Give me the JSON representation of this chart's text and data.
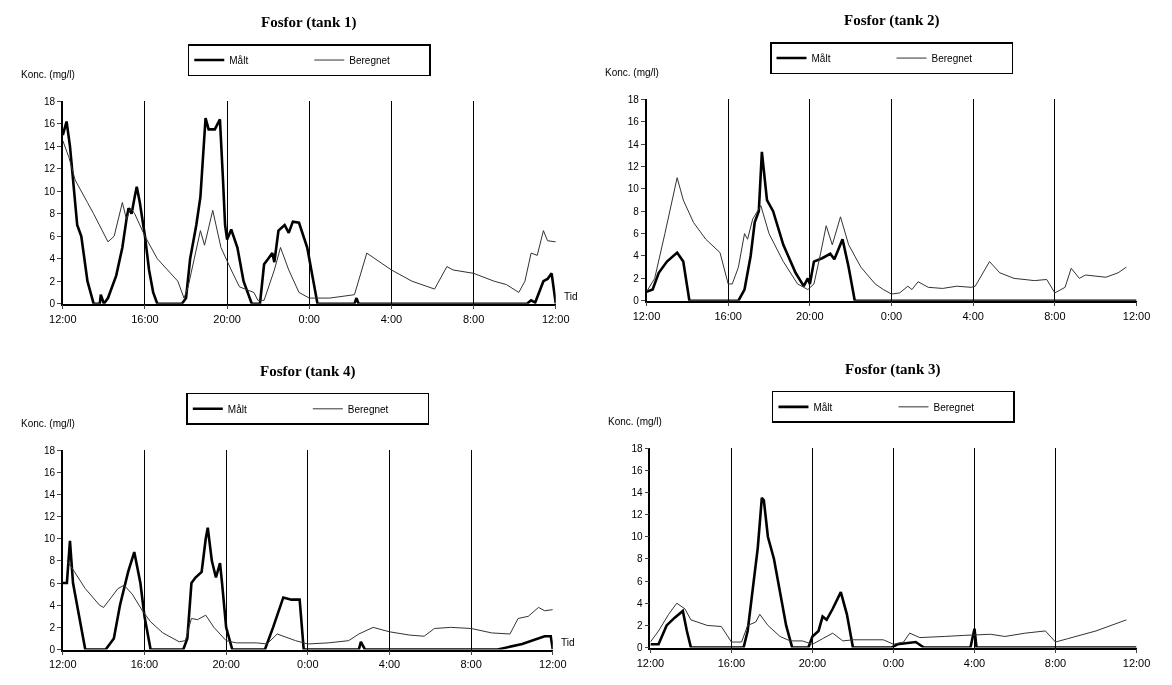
{
  "chart_data": [
    {
      "type": "line",
      "title": "Fosfor (tank 1)",
      "ylabel": "Konc. (mg/l)",
      "xlabel": "Tid",
      "xlim": [
        "2000-01-01T12:00",
        "2000-01-02T12:00"
      ],
      "ylim": [
        0,
        18
      ],
      "xticks": [
        {
          "value": "2000-01-01T12:00",
          "label": "12:00"
        },
        {
          "value": "2000-01-01T16:00",
          "label": "16:00"
        },
        {
          "value": "2000-01-01T20:00",
          "label": "20:00"
        },
        {
          "value": "2000-01-02T00:00",
          "label": "0:00"
        },
        {
          "value": "2000-01-02T04:00",
          "label": "4:00"
        },
        {
          "value": "2000-01-02T08:00",
          "label": "8:00"
        },
        {
          "value": "2000-01-02T12:00",
          "label": "12:00"
        }
      ],
      "yticks": [
        0,
        2,
        4,
        6,
        8,
        10,
        12,
        14,
        16,
        18
      ],
      "grid": "x",
      "legend": "top",
      "line_style": "solid",
      "marker": "none",
      "series": [
        {
          "name": "Målt",
          "color": "#000000",
          "x": [
            "2000-01-01T12:00",
            "2000-01-01T12:11",
            "2000-01-01T12:21",
            "2000-01-01T12:42",
            "2000-01-01T12:54",
            "2000-01-01T13:12",
            "2000-01-01T13:30",
            "2000-01-01T13:48",
            "2000-01-01T13:51",
            "2000-01-01T14:00",
            "2000-01-01T14:12",
            "2000-01-01T14:36",
            "2000-01-01T14:54",
            "2000-01-01T15:06",
            "2000-01-01T15:12",
            "2000-01-01T15:21",
            "2000-01-01T15:30",
            "2000-01-01T15:36",
            "2000-01-01T15:45",
            "2000-01-01T16:00",
            "2000-01-01T16:12",
            "2000-01-01T16:24",
            "2000-01-01T16:36",
            "2000-01-01T17:48",
            "2000-01-01T18:00",
            "2000-01-01T18:12",
            "2000-01-01T18:30",
            "2000-01-01T18:42",
            "2000-01-01T18:57",
            "2000-01-01T19:06",
            "2000-01-01T19:24",
            "2000-01-01T19:39",
            "2000-01-01T19:48",
            "2000-01-01T19:54",
            "2000-01-01T20:00",
            "2000-01-01T20:12",
            "2000-01-01T20:30",
            "2000-01-01T20:48",
            "2000-01-01T21:12",
            "2000-01-01T21:36",
            "2000-01-01T21:48",
            "2000-01-01T22:00",
            "2000-01-01T22:12",
            "2000-01-01T22:18",
            "2000-01-01T22:30",
            "2000-01-01T22:48",
            "2000-01-01T23:00",
            "2000-01-01T23:12",
            "2000-01-01T23:30",
            "2000-01-01T23:54",
            "2000-01-02T00:12",
            "2000-01-02T00:24",
            "2000-01-02T02:12",
            "2000-01-02T02:18",
            "2000-01-02T02:24",
            "2000-01-02T10:36",
            "2000-01-02T10:48",
            "2000-01-02T11:00",
            "2000-01-02T11:24",
            "2000-01-02T11:36",
            "2000-01-02T11:48",
            "2000-01-02T12:00"
          ],
          "values": [
            15,
            16.2,
            14,
            7,
            6,
            2,
            0,
            0,
            0.8,
            0,
            0.5,
            2.5,
            5,
            7.5,
            8.5,
            8,
            9.5,
            10.4,
            9,
            6,
            3,
            1,
            0,
            0,
            0.5,
            4,
            7,
            9.5,
            16.5,
            15.5,
            15.5,
            16.4,
            11,
            7,
            5.7,
            6.6,
            5,
            2,
            0,
            0,
            3.5,
            4,
            4.5,
            3.7,
            6.5,
            7,
            6.3,
            7.3,
            7.2,
            5,
            2,
            0,
            0,
            0.5,
            0,
            0,
            0.3,
            0.1,
            2,
            2.2,
            2.7,
            0
          ]
        },
        {
          "name": "Beregnet",
          "color": "#333333",
          "x": [
            "2000-01-01T12:00",
            "2000-01-01T12:18",
            "2000-01-01T12:36",
            "2000-01-01T13:12",
            "2000-01-01T13:30",
            "2000-01-01T14:12",
            "2000-01-01T14:30",
            "2000-01-01T14:54",
            "2000-01-01T15:06",
            "2000-01-01T15:18",
            "2000-01-01T15:30",
            "2000-01-01T16:00",
            "2000-01-01T16:36",
            "2000-01-01T17:36",
            "2000-01-01T17:54",
            "2000-01-01T18:06",
            "2000-01-01T18:24",
            "2000-01-01T18:42",
            "2000-01-01T18:54",
            "2000-01-01T19:18",
            "2000-01-01T19:42",
            "2000-01-01T20:12",
            "2000-01-01T20:36",
            "2000-01-01T21:18",
            "2000-01-01T21:30",
            "2000-01-01T21:48",
            "2000-01-01T22:18",
            "2000-01-01T22:36",
            "2000-01-01T23:00",
            "2000-01-01T23:30",
            "2000-01-02T00:00",
            "2000-01-02T01:00",
            "2000-01-02T02:12",
            "2000-01-02T02:48",
            "2000-01-02T03:12",
            "2000-01-02T04:00",
            "2000-01-02T05:00",
            "2000-01-02T06:06",
            "2000-01-02T06:42",
            "2000-01-02T07:00",
            "2000-01-02T08:00",
            "2000-01-02T09:00",
            "2000-01-02T09:36",
            "2000-01-02T10:12",
            "2000-01-02T10:30",
            "2000-01-02T10:48",
            "2000-01-02T11:06",
            "2000-01-02T11:24",
            "2000-01-02T11:36",
            "2000-01-02T12:00"
          ],
          "values": [
            14.5,
            13,
            11,
            9,
            8,
            5.5,
            6,
            9,
            7.5,
            8.5,
            8,
            6,
            4,
            2,
            0.5,
            1.5,
            4,
            6.5,
            5.2,
            8.3,
            5,
            3,
            1.5,
            1,
            0.3,
            0.3,
            3,
            5,
            3,
            1,
            0.5,
            0.5,
            0.8,
            4.5,
            4,
            3,
            2,
            1.3,
            3.3,
            3,
            2.7,
            2,
            1.7,
            1,
            2,
            4.5,
            4.3,
            6.5,
            5.6,
            5.5
          ]
        }
      ]
    },
    {
      "type": "line",
      "title": "Fosfor (tank 2)",
      "ylabel": "Konc. (mg/l)",
      "xlim": [
        "2000-01-01T12:00",
        "2000-01-02T12:00"
      ],
      "ylim": [
        0,
        18
      ],
      "xticks": [
        {
          "value": "2000-01-01T12:00",
          "label": "12:00"
        },
        {
          "value": "2000-01-01T16:00",
          "label": "16:00"
        },
        {
          "value": "2000-01-01T20:00",
          "label": "20:00"
        },
        {
          "value": "2000-01-02T00:00",
          "label": "0:00"
        },
        {
          "value": "2000-01-02T04:00",
          "label": "4:00"
        },
        {
          "value": "2000-01-02T08:00",
          "label": "8:00"
        },
        {
          "value": "2000-01-02T12:00",
          "label": "12:00"
        }
      ],
      "yticks": [
        0,
        2,
        4,
        6,
        8,
        10,
        12,
        14,
        16,
        18
      ],
      "grid": "x",
      "legend": "top",
      "line_style": "solid",
      "marker": "none",
      "series": [
        {
          "name": "Målt",
          "color": "#000000",
          "x": [
            "2000-01-01T12:00",
            "2000-01-01T12:18",
            "2000-01-01T12:36",
            "2000-01-01T13:00",
            "2000-01-01T13:30",
            "2000-01-01T13:48",
            "2000-01-01T14:06",
            "2000-01-01T16:30",
            "2000-01-01T16:48",
            "2000-01-01T17:06",
            "2000-01-01T17:18",
            "2000-01-01T17:30",
            "2000-01-01T17:39",
            "2000-01-01T17:54",
            "2000-01-01T18:12",
            "2000-01-01T18:42",
            "2000-01-01T19:18",
            "2000-01-01T19:42",
            "2000-01-01T19:54",
            "2000-01-01T20:00",
            "2000-01-01T20:12",
            "2000-01-01T20:36",
            "2000-01-01T21:00",
            "2000-01-01T21:12",
            "2000-01-01T21:36",
            "2000-01-01T21:54",
            "2000-01-01T22:12",
            "2000-01-02T12:00"
          ],
          "values": [
            0.8,
            1,
            2.5,
            3.5,
            4.3,
            3.5,
            0,
            0,
            1,
            4,
            7,
            8,
            13.3,
            9,
            8,
            5,
            2.5,
            1.3,
            2,
            1.5,
            3.5,
            3.8,
            4.2,
            3.7,
            5.5,
            3,
            0,
            0
          ]
        },
        {
          "name": "Beregnet",
          "color": "#333333",
          "x": [
            "2000-01-01T12:00",
            "2000-01-01T12:24",
            "2000-01-01T12:54",
            "2000-01-01T13:30",
            "2000-01-01T13:48",
            "2000-01-01T14:18",
            "2000-01-01T14:54",
            "2000-01-01T15:36",
            "2000-01-01T16:00",
            "2000-01-01T16:12",
            "2000-01-01T16:30",
            "2000-01-01T16:48",
            "2000-01-01T16:57",
            "2000-01-01T17:12",
            "2000-01-01T17:36",
            "2000-01-01T18:00",
            "2000-01-01T18:42",
            "2000-01-01T19:24",
            "2000-01-01T19:54",
            "2000-01-01T20:12",
            "2000-01-01T20:30",
            "2000-01-01T20:48",
            "2000-01-01T21:06",
            "2000-01-01T21:30",
            "2000-01-01T21:54",
            "2000-01-01T22:30",
            "2000-01-01T23:12",
            "2000-01-01T23:36",
            "2000-01-02T00:00",
            "2000-01-02T00:24",
            "2000-01-02T00:48",
            "2000-01-02T01:00",
            "2000-01-02T01:18",
            "2000-01-02T01:48",
            "2000-01-02T02:30",
            "2000-01-02T03:12",
            "2000-01-02T03:54",
            "2000-01-02T04:06",
            "2000-01-02T04:48",
            "2000-01-02T05:18",
            "2000-01-02T06:00",
            "2000-01-02T07:00",
            "2000-01-02T07:36",
            "2000-01-02T08:00",
            "2000-01-02T08:30",
            "2000-01-02T08:48",
            "2000-01-02T09:12",
            "2000-01-02T09:30",
            "2000-01-02T10:30",
            "2000-01-02T11:06",
            "2000-01-02T11:30"
          ],
          "values": [
            0.8,
            2,
            6,
            11,
            9,
            7,
            5.5,
            4.3,
            1.5,
            1.5,
            3,
            6,
            5.5,
            7.3,
            8.5,
            6,
            3.5,
            1.5,
            1,
            1.5,
            4,
            6.7,
            5,
            7.5,
            5,
            3,
            1.5,
            1,
            0.6,
            0.7,
            1.3,
            1,
            1.7,
            1.2,
            1.1,
            1.3,
            1.2,
            1.3,
            3.5,
            2.5,
            2,
            1.8,
            1.9,
            0.7,
            1.2,
            2.9,
            2,
            2.3,
            2.1,
            2.5,
            3
          ]
        }
      ]
    },
    {
      "type": "line",
      "title": "Fosfor (tank 4)",
      "ylabel": "Konc. (mg/l)",
      "xlabel": "Tid",
      "xlim": [
        "2000-01-01T12:00",
        "2000-01-02T12:00"
      ],
      "ylim": [
        0,
        18
      ],
      "xticks": [
        {
          "value": "2000-01-01T12:00",
          "label": "12:00"
        },
        {
          "value": "2000-01-01T16:00",
          "label": "16:00"
        },
        {
          "value": "2000-01-01T20:00",
          "label": "20:00"
        },
        {
          "value": "2000-01-02T00:00",
          "label": "0:00"
        },
        {
          "value": "2000-01-02T04:00",
          "label": "4:00"
        },
        {
          "value": "2000-01-02T08:00",
          "label": "8:00"
        },
        {
          "value": "2000-01-02T12:00",
          "label": "12:00"
        }
      ],
      "yticks": [
        0,
        2,
        4,
        6,
        8,
        10,
        12,
        14,
        16,
        18
      ],
      "grid": "x",
      "legend": "top",
      "line_style": "solid",
      "marker": "none",
      "series": [
        {
          "name": "Målt",
          "color": "#000000",
          "x": [
            "2000-01-01T12:00",
            "2000-01-01T12:12",
            "2000-01-01T12:21",
            "2000-01-01T12:30",
            "2000-01-01T12:48",
            "2000-01-01T13:06",
            "2000-01-01T14:06",
            "2000-01-01T14:30",
            "2000-01-01T14:48",
            "2000-01-01T15:12",
            "2000-01-01T15:30",
            "2000-01-01T15:48",
            "2000-01-01T16:00",
            "2000-01-01T16:18",
            "2000-01-01T17:54",
            "2000-01-01T18:06",
            "2000-01-01T18:18",
            "2000-01-01T18:30",
            "2000-01-01T18:48",
            "2000-01-01T19:00",
            "2000-01-01T19:06",
            "2000-01-01T19:18",
            "2000-01-01T19:30",
            "2000-01-01T19:42",
            "2000-01-01T19:48",
            "2000-01-01T20:00",
            "2000-01-01T20:18",
            "2000-01-01T21:54",
            "2000-01-01T22:18",
            "2000-01-01T22:48",
            "2000-01-01T23:12",
            "2000-01-01T23:36",
            "2000-01-01T23:48",
            "2000-01-02T02:30",
            "2000-01-02T02:36",
            "2000-01-02T02:48",
            "2000-01-02T09:18",
            "2000-01-02T10:30",
            "2000-01-02T11:36",
            "2000-01-02T11:54",
            "2000-01-02T12:00"
          ],
          "values": [
            6,
            6,
            9.8,
            6,
            3,
            0,
            0,
            1,
            4,
            7,
            8.8,
            6,
            3,
            0,
            0,
            1,
            6,
            6.5,
            7,
            10,
            11,
            8,
            6.5,
            7.8,
            6,
            2,
            0,
            0,
            2,
            4.7,
            4.5,
            4.5,
            0,
            0,
            0.7,
            0,
            0,
            0.5,
            1.2,
            1.2,
            0
          ]
        },
        {
          "name": "Beregnet",
          "color": "#333333",
          "x": [
            "2000-01-01T12:12",
            "2000-01-01T12:24",
            "2000-01-01T13:06",
            "2000-01-01T13:48",
            "2000-01-01T14:00",
            "2000-01-01T14:42",
            "2000-01-01T15:00",
            "2000-01-01T15:24",
            "2000-01-01T15:54",
            "2000-01-01T16:18",
            "2000-01-01T16:54",
            "2000-01-01T17:42",
            "2000-01-01T18:00",
            "2000-01-01T18:18",
            "2000-01-01T18:36",
            "2000-01-01T19:00",
            "2000-01-01T19:24",
            "2000-01-01T20:00",
            "2000-01-01T20:30",
            "2000-01-01T21:30",
            "2000-01-01T22:00",
            "2000-01-01T22:30",
            "2000-01-01T23:24",
            "2000-01-02T00:00",
            "2000-01-02T01:00",
            "2000-01-02T02:00",
            "2000-01-02T02:30",
            "2000-01-02T03:12",
            "2000-01-02T04:00",
            "2000-01-02T05:00",
            "2000-01-02T05:42",
            "2000-01-02T06:12",
            "2000-01-02T07:00",
            "2000-01-02T08:00",
            "2000-01-02T09:00",
            "2000-01-02T09:54",
            "2000-01-02T10:18",
            "2000-01-02T10:48",
            "2000-01-02T11:18",
            "2000-01-02T11:36",
            "2000-01-02T12:00"
          ],
          "values": [
            8,
            7.5,
            5.5,
            4,
            3.8,
            5.5,
            5.8,
            5,
            3.5,
            2.5,
            1.5,
            0.7,
            0.8,
            2.8,
            2.7,
            3.1,
            2,
            0.8,
            0.6,
            0.6,
            0.5,
            1.4,
            0.8,
            0.5,
            0.6,
            0.8,
            1.4,
            2,
            1.6,
            1.3,
            1.2,
            1.9,
            2,
            1.9,
            1.5,
            1.4,
            2.8,
            3,
            3.8,
            3.5,
            3.6
          ]
        }
      ]
    },
    {
      "type": "line",
      "title": "Fosfor (tank 3)",
      "ylabel": "Konc. (mg/l)",
      "xlim": [
        "2000-01-01T12:00",
        "2000-01-02T12:00"
      ],
      "ylim": [
        0,
        18
      ],
      "xticks": [
        {
          "value": "2000-01-01T12:00",
          "label": "12:00"
        },
        {
          "value": "2000-01-01T16:00",
          "label": "16:00"
        },
        {
          "value": "2000-01-01T20:00",
          "label": "20:00"
        },
        {
          "value": "2000-01-02T00:00",
          "label": "0:00"
        },
        {
          "value": "2000-01-02T04:00",
          "label": "4:00"
        },
        {
          "value": "2000-01-02T08:00",
          "label": "8:00"
        },
        {
          "value": "2000-01-02T12:00",
          "label": "12:00"
        }
      ],
      "yticks": [
        0,
        2,
        4,
        6,
        8,
        10,
        12,
        14,
        16,
        18
      ],
      "grid": "x",
      "legend": "top",
      "line_style": "solid",
      "marker": "none",
      "series": [
        {
          "name": "Målt",
          "color": "#000000",
          "x": [
            "2000-01-01T12:00",
            "2000-01-01T12:24",
            "2000-01-01T12:48",
            "2000-01-01T13:12",
            "2000-01-01T13:36",
            "2000-01-01T13:48",
            "2000-01-01T14:00",
            "2000-01-01T16:36",
            "2000-01-01T16:48",
            "2000-01-01T17:06",
            "2000-01-01T17:18",
            "2000-01-01T17:30",
            "2000-01-01T17:36",
            "2000-01-01T17:48",
            "2000-01-01T18:06",
            "2000-01-01T18:24",
            "2000-01-01T18:42",
            "2000-01-01T19:00",
            "2000-01-01T19:48",
            "2000-01-01T20:00",
            "2000-01-01T20:18",
            "2000-01-01T20:30",
            "2000-01-01T20:42",
            "2000-01-01T21:00",
            "2000-01-01T21:24",
            "2000-01-01T21:42",
            "2000-01-01T22:00",
            "2000-01-01T23:54",
            "2000-01-02T00:12",
            "2000-01-02T01:06",
            "2000-01-02T01:30",
            "2000-01-02T03:48",
            "2000-01-02T04:00",
            "2000-01-02T04:06",
            "2000-01-02T12:00"
          ],
          "values": [
            0.3,
            0.3,
            2,
            2.7,
            3.3,
            1.5,
            0,
            0,
            1.5,
            6,
            9,
            13.5,
            13.3,
            10,
            8,
            5,
            2,
            0,
            0,
            1,
            1.5,
            2.8,
            2.5,
            3.5,
            5,
            3,
            0,
            0,
            0.3,
            0.5,
            0,
            0,
            1.7,
            0,
            0
          ]
        },
        {
          "name": "Beregnet",
          "color": "#333333",
          "x": [
            "2000-01-01T12:00",
            "2000-01-01T12:24",
            "2000-01-01T12:54",
            "2000-01-01T13:18",
            "2000-01-01T13:42",
            "2000-01-01T14:00",
            "2000-01-01T14:48",
            "2000-01-01T15:30",
            "2000-01-01T16:00",
            "2000-01-01T16:30",
            "2000-01-01T16:48",
            "2000-01-01T17:12",
            "2000-01-01T17:24",
            "2000-01-01T17:48",
            "2000-01-01T18:24",
            "2000-01-01T18:54",
            "2000-01-01T19:30",
            "2000-01-01T20:00",
            "2000-01-01T20:30",
            "2000-01-01T21:00",
            "2000-01-01T21:30",
            "2000-01-01T22:00",
            "2000-01-01T23:30",
            "2000-01-02T00:00",
            "2000-01-02T00:30",
            "2000-01-02T00:48",
            "2000-01-02T01:18",
            "2000-01-02T02:30",
            "2000-01-02T03:30",
            "2000-01-02T04:48",
            "2000-01-02T05:30",
            "2000-01-02T06:30",
            "2000-01-02T07:30",
            "2000-01-02T08:00",
            "2000-01-02T08:36",
            "2000-01-02T10:00",
            "2000-01-02T11:30"
          ],
          "values": [
            0.5,
            1.5,
            3,
            4,
            3.5,
            2.5,
            2,
            1.9,
            0.5,
            0.5,
            2,
            2.3,
            3,
            2,
            1,
            0.6,
            0.6,
            0.3,
            0.8,
            1.3,
            0.6,
            0.7,
            0.7,
            0.3,
            0.5,
            1.3,
            0.9,
            1,
            1.1,
            1.2,
            1,
            1.3,
            1.5,
            0.5,
            0.8,
            1.5,
            2.5
          ]
        }
      ]
    }
  ]
}
